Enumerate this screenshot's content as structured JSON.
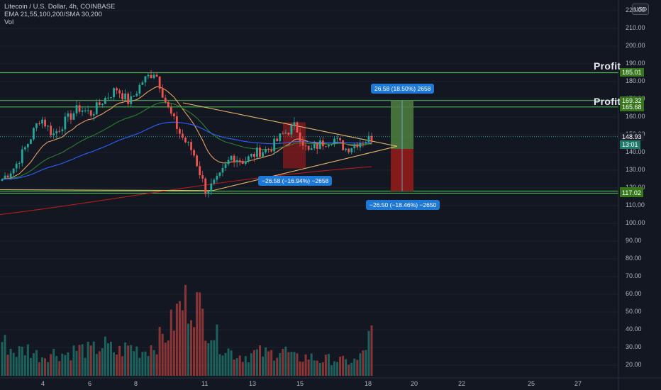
{
  "header": {
    "symbol_line": "Litecoin / U.S. Dollar, 4h, COINBASE",
    "ema_line": "EMA 21,55,100,200/SMA 30,200",
    "vol_line": "Vol",
    "currency": "USD"
  },
  "annotations": {
    "profit_label_1": "Profit",
    "profit_label_2": "Profit",
    "long_measure": "26.58 (18.50%) 2658",
    "short_measure_1": "−26.58 (−16.94%) −2658",
    "short_measure_2": "−26.50 (−18.46%) −2650"
  },
  "price_axis": {
    "ticks": [
      "220.00",
      "210.00",
      "200.00",
      "190.00",
      "180.00",
      "170.00",
      "160.00",
      "150.00",
      "140.00",
      "130.00",
      "120.00",
      "110.00",
      "100.00",
      "90.00",
      "80.00",
      "70.00",
      "60.00",
      "50.00",
      "40.00",
      "30.00",
      "20.00"
    ],
    "tags": [
      {
        "label": "185.01",
        "color": "#38761d"
      },
      {
        "label": "169.32",
        "color": "#38761d"
      },
      {
        "label": "165.68",
        "color": "#38761d"
      },
      {
        "label": "148.93",
        "color": "#1e222d"
      },
      {
        "label": "13:01",
        "color": "#1f7a6b"
      },
      {
        "label": "118.20",
        "color": "#38761d"
      },
      {
        "label": "117.02",
        "color": "#38761d"
      }
    ]
  },
  "time_axis": {
    "ticks": [
      "4",
      "6",
      "8",
      "11",
      "13",
      "15",
      "18",
      "20",
      "22",
      "25",
      "27"
    ]
  },
  "chart_data": {
    "type": "candlestick",
    "price_ticks": [
      220,
      210,
      200,
      190,
      180,
      170,
      160,
      150,
      140,
      130,
      120,
      110,
      100,
      90,
      80,
      70,
      60,
      50,
      40,
      30,
      20
    ],
    "horizontal_levels": [
      185.01,
      169.32,
      165.68,
      118.2,
      117.02
    ],
    "current_price": 148.93,
    "time_ticks": [
      "4",
      "6",
      "8",
      "11",
      "13",
      "15",
      "18",
      "20",
      "22",
      "25",
      "27"
    ],
    "close_path": [
      125,
      132,
      145,
      160,
      150,
      158,
      165,
      162,
      170,
      176,
      168,
      180,
      186,
      165,
      150,
      140,
      118,
      125,
      138,
      135,
      140,
      142,
      150,
      155,
      140,
      145,
      148,
      142,
      146,
      148
    ],
    "volume_path": [
      0.45,
      0.3,
      0.35,
      0.25,
      0.3,
      0.28,
      0.35,
      0.32,
      0.4,
      0.3,
      0.38,
      0.32,
      0.42,
      0.55,
      0.9,
      1.0,
      0.7,
      0.45,
      0.3,
      0.25,
      0.3,
      0.28,
      0.35,
      0.22,
      0.25,
      0.2,
      0.22,
      0.18,
      0.2,
      0.55
    ],
    "long_position": {
      "entry": 142.0,
      "target": 169.32,
      "stop": 118.2
    },
    "short_box": {
      "top": 157.0,
      "bottom": 131.0
    },
    "triangle": {
      "upper_start": 168.0,
      "lower_start": 118.5,
      "apex": 143.5
    }
  },
  "colors": {
    "bull": "#26a69a",
    "bear": "#ef5350",
    "level": "#4caf50",
    "triangle": "#e8b96a",
    "ema_fast": "#e8a060",
    "ema_mid": "#2e7d32",
    "ema_slow": "#2962ff",
    "sma_long": "#b71c1c"
  }
}
